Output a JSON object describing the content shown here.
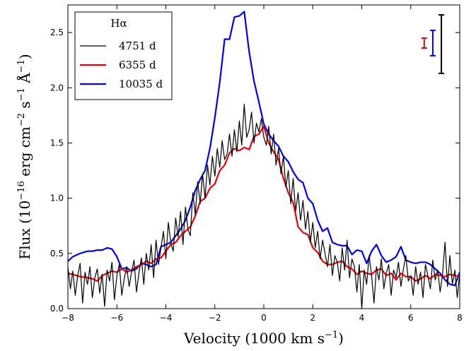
{
  "chart_data": {
    "type": "line",
    "xlabel": "Velocity (1000 km s",
    "xlabel_sup": "−1",
    "xlabel_close": ")",
    "ylabel": "Flux (10",
    "ylabel_sup1": "−16",
    "ylabel_mid": " erg cm",
    "ylabel_sup2": "−2",
    "ylabel_mid2": " s",
    "ylabel_sup3": "−1",
    "ylabel_mid3": " Å",
    "ylabel_sup4": "−1",
    "ylabel_close": ")",
    "xlim": [
      -8,
      8
    ],
    "ylim": [
      0,
      2.75
    ],
    "xticks": [
      -8,
      -6,
      -4,
      -2,
      0,
      2,
      4,
      6,
      8
    ],
    "xtick_labels": [
      "−8",
      "−6",
      "−4",
      "−2",
      "0",
      "2",
      "4",
      "6",
      "8"
    ],
    "yticks": [
      0,
      0.5,
      1.0,
      1.5,
      2.0,
      2.5
    ],
    "ytick_labels": [
      "0.0",
      "0.5",
      "1.0",
      "1.5",
      "2.0",
      "2.5"
    ],
    "grid": false,
    "legend": {
      "title": "Hα",
      "placement": "top-left",
      "entries": [
        {
          "label": "4751 d",
          "color": "#000000"
        },
        {
          "label": "6355 d",
          "color": "#e8000b"
        },
        {
          "label": "10035 d",
          "color": "#0000e6"
        }
      ]
    },
    "error_bars": [
      {
        "series": "6355 d",
        "x": 6.55,
        "low": 2.36,
        "high": 2.45,
        "color": "#e8000b"
      },
      {
        "series": "10035 d",
        "x": 6.9,
        "low": 2.29,
        "high": 2.52,
        "color": "#0000e6"
      },
      {
        "series": "4751 d",
        "x": 7.25,
        "low": 2.13,
        "high": 2.66,
        "color": "#000000"
      }
    ],
    "series": [
      {
        "name": "10035 d",
        "color": "#0000e6",
        "x": [
          -8.0,
          -7.8,
          -7.5,
          -7.2,
          -7.0,
          -6.8,
          -6.6,
          -6.4,
          -6.2,
          -6.0,
          -5.8,
          -5.6,
          -5.4,
          -5.2,
          -5.0,
          -4.8,
          -4.6,
          -4.4,
          -4.2,
          -4.0,
          -3.8,
          -3.6,
          -3.4,
          -3.2,
          -3.0,
          -2.8,
          -2.6,
          -2.4,
          -2.2,
          -2.0,
          -1.8,
          -1.6,
          -1.4,
          -1.2,
          -1.0,
          -0.8,
          -0.6,
          -0.4,
          -0.2,
          0.0,
          0.2,
          0.4,
          0.6,
          0.8,
          1.0,
          1.2,
          1.4,
          1.6,
          1.8,
          2.0,
          2.2,
          2.4,
          2.6,
          2.8,
          3.0,
          3.2,
          3.4,
          3.6,
          3.8,
          4.0,
          4.2,
          4.4,
          4.6,
          4.8,
          5.0,
          5.2,
          5.4,
          5.6,
          5.8,
          6.0,
          6.2,
          6.4,
          6.6,
          6.8,
          7.0,
          7.2,
          7.4,
          7.6,
          7.8,
          8.0
        ],
        "values": [
          0.43,
          0.47,
          0.5,
          0.52,
          0.52,
          0.53,
          0.53,
          0.55,
          0.54,
          0.47,
          0.36,
          0.37,
          0.34,
          0.36,
          0.41,
          0.4,
          0.38,
          0.4,
          0.56,
          0.58,
          0.6,
          0.66,
          0.72,
          0.8,
          0.92,
          1.07,
          1.17,
          1.25,
          1.45,
          1.73,
          2.05,
          2.44,
          2.44,
          2.64,
          2.65,
          2.69,
          2.33,
          2.06,
          1.87,
          1.67,
          1.58,
          1.52,
          1.47,
          1.38,
          1.33,
          1.24,
          1.17,
          1.14,
          1.0,
          0.95,
          0.8,
          0.7,
          0.73,
          0.6,
          0.58,
          0.57,
          0.57,
          0.49,
          0.53,
          0.52,
          0.41,
          0.52,
          0.58,
          0.48,
          0.42,
          0.44,
          0.47,
          0.56,
          0.44,
          0.42,
          0.41,
          0.42,
          0.42,
          0.4,
          0.36,
          0.32,
          0.26,
          0.22,
          0.21,
          0.33
        ]
      },
      {
        "name": "6355 d",
        "color": "#e8000b",
        "x": [
          -8.0,
          -7.8,
          -7.5,
          -7.2,
          -7.0,
          -6.8,
          -6.6,
          -6.4,
          -6.2,
          -6.0,
          -5.8,
          -5.6,
          -5.4,
          -5.2,
          -5.0,
          -4.8,
          -4.6,
          -4.4,
          -4.2,
          -4.0,
          -3.8,
          -3.6,
          -3.4,
          -3.2,
          -3.0,
          -2.8,
          -2.6,
          -2.4,
          -2.2,
          -2.0,
          -1.8,
          -1.6,
          -1.4,
          -1.2,
          -1.0,
          -0.8,
          -0.6,
          -0.4,
          -0.2,
          0.0,
          0.2,
          0.4,
          0.6,
          0.8,
          1.0,
          1.2,
          1.4,
          1.6,
          1.8,
          2.0,
          2.2,
          2.4,
          2.6,
          2.8,
          3.0,
          3.2,
          3.4,
          3.6,
          3.8,
          4.0,
          4.2,
          4.4,
          4.6,
          4.8,
          5.0,
          5.2,
          5.4,
          5.6,
          5.8,
          6.0,
          6.2,
          6.4,
          6.6,
          6.8,
          7.0,
          7.2,
          7.4,
          7.6,
          7.8,
          8.0
        ],
        "values": [
          0.32,
          0.31,
          0.29,
          0.28,
          0.27,
          0.25,
          0.3,
          0.32,
          0.34,
          0.33,
          0.36,
          0.33,
          0.35,
          0.38,
          0.4,
          0.43,
          0.41,
          0.45,
          0.46,
          0.52,
          0.58,
          0.6,
          0.66,
          0.7,
          0.74,
          0.84,
          0.97,
          1.0,
          1.09,
          1.13,
          1.25,
          1.3,
          1.41,
          1.45,
          1.43,
          1.46,
          1.44,
          1.56,
          1.58,
          1.65,
          1.5,
          1.42,
          1.35,
          1.18,
          1.05,
          0.96,
          0.74,
          0.69,
          0.67,
          0.55,
          0.51,
          0.43,
          0.4,
          0.4,
          0.42,
          0.43,
          0.38,
          0.36,
          0.31,
          0.34,
          0.32,
          0.31,
          0.35,
          0.36,
          0.3,
          0.32,
          0.26,
          0.32,
          0.29,
          0.29,
          0.25,
          0.27,
          0.3,
          0.27,
          0.31,
          0.3,
          0.29,
          0.31,
          0.3,
          0.29
        ]
      },
      {
        "name": "4751 d",
        "color": "#000000",
        "x": [
          -8.0,
          -7.9,
          -7.8,
          -7.7,
          -7.6,
          -7.5,
          -7.4,
          -7.3,
          -7.2,
          -7.1,
          -7.0,
          -6.9,
          -6.8,
          -6.7,
          -6.6,
          -6.5,
          -6.4,
          -6.3,
          -6.2,
          -6.1,
          -6.0,
          -5.9,
          -5.8,
          -5.7,
          -5.6,
          -5.5,
          -5.4,
          -5.3,
          -5.2,
          -5.1,
          -5.0,
          -4.9,
          -4.8,
          -4.7,
          -4.6,
          -4.5,
          -4.4,
          -4.3,
          -4.2,
          -4.1,
          -4.0,
          -3.9,
          -3.8,
          -3.7,
          -3.6,
          -3.5,
          -3.4,
          -3.3,
          -3.2,
          -3.1,
          -3.0,
          -2.9,
          -2.8,
          -2.7,
          -2.6,
          -2.5,
          -2.4,
          -2.3,
          -2.2,
          -2.1,
          -2.0,
          -1.9,
          -1.8,
          -1.7,
          -1.6,
          -1.5,
          -1.4,
          -1.3,
          -1.2,
          -1.1,
          -1.0,
          -0.9,
          -0.8,
          -0.7,
          -0.6,
          -0.5,
          -0.4,
          -0.3,
          -0.2,
          -0.1,
          0.0,
          0.1,
          0.2,
          0.3,
          0.4,
          0.5,
          0.6,
          0.7,
          0.8,
          0.9,
          1.0,
          1.1,
          1.2,
          1.3,
          1.4,
          1.5,
          1.6,
          1.7,
          1.8,
          1.9,
          2.0,
          2.1,
          2.2,
          2.3,
          2.4,
          2.5,
          2.6,
          2.7,
          2.8,
          2.9,
          3.0,
          3.1,
          3.2,
          3.3,
          3.4,
          3.5,
          3.6,
          3.7,
          3.8,
          3.9,
          4.0,
          4.1,
          4.2,
          4.3,
          4.4,
          4.5,
          4.6,
          4.7,
          4.8,
          4.9,
          5.0,
          5.1,
          5.2,
          5.3,
          5.4,
          5.5,
          5.6,
          5.7,
          5.8,
          5.9,
          6.0,
          6.1,
          6.2,
          6.3,
          6.4,
          6.5,
          6.6,
          6.7,
          6.8,
          6.9,
          7.0,
          7.1,
          7.2,
          7.3,
          7.4,
          7.5,
          7.6,
          7.7,
          7.8,
          7.9,
          8.0
        ],
        "values": [
          0.38,
          0.18,
          0.34,
          0.12,
          0.3,
          0.41,
          0.05,
          0.33,
          0.22,
          0.38,
          0.1,
          0.28,
          0.36,
          0.14,
          0.31,
          0.02,
          0.35,
          0.25,
          0.42,
          0.08,
          0.3,
          0.4,
          0.12,
          0.27,
          0.38,
          0.2,
          0.33,
          0.44,
          0.15,
          0.32,
          0.46,
          0.22,
          0.5,
          0.35,
          0.58,
          0.28,
          0.62,
          0.4,
          0.55,
          0.7,
          0.45,
          0.78,
          0.6,
          0.52,
          0.82,
          0.65,
          0.88,
          0.58,
          0.92,
          0.72,
          0.66,
          1.05,
          0.85,
          1.15,
          0.95,
          1.22,
          1.0,
          1.3,
          1.12,
          1.38,
          1.2,
          1.45,
          1.28,
          1.52,
          1.35,
          1.4,
          1.58,
          1.38,
          1.62,
          1.42,
          1.7,
          1.48,
          1.85,
          1.55,
          1.62,
          1.78,
          1.5,
          1.68,
          1.6,
          1.72,
          1.55,
          1.48,
          1.65,
          1.4,
          1.58,
          1.3,
          1.45,
          1.22,
          1.38,
          1.1,
          1.25,
          0.95,
          1.18,
          0.88,
          1.05,
          0.8,
          0.98,
          0.72,
          0.88,
          0.6,
          0.78,
          0.55,
          0.7,
          0.45,
          0.62,
          0.5,
          0.38,
          0.58,
          0.3,
          0.48,
          0.42,
          0.25,
          0.55,
          0.35,
          0.62,
          0.28,
          0.45,
          0.38,
          0.15,
          0.4,
          0.0,
          0.35,
          0.22,
          0.48,
          0.3,
          0.05,
          0.38,
          0.26,
          0.45,
          0.18,
          0.32,
          0.4,
          0.12,
          0.35,
          0.28,
          0.42,
          0.2,
          0.36,
          0.48,
          0.25,
          0.3,
          0.12,
          0.38,
          0.22,
          0.33,
          0.1,
          0.4,
          0.3,
          0.18,
          0.44,
          0.26,
          0.35,
          0.15,
          0.32,
          0.6,
          0.2,
          0.48,
          0.22,
          0.35,
          0.1,
          0.32
        ]
      }
    ]
  }
}
